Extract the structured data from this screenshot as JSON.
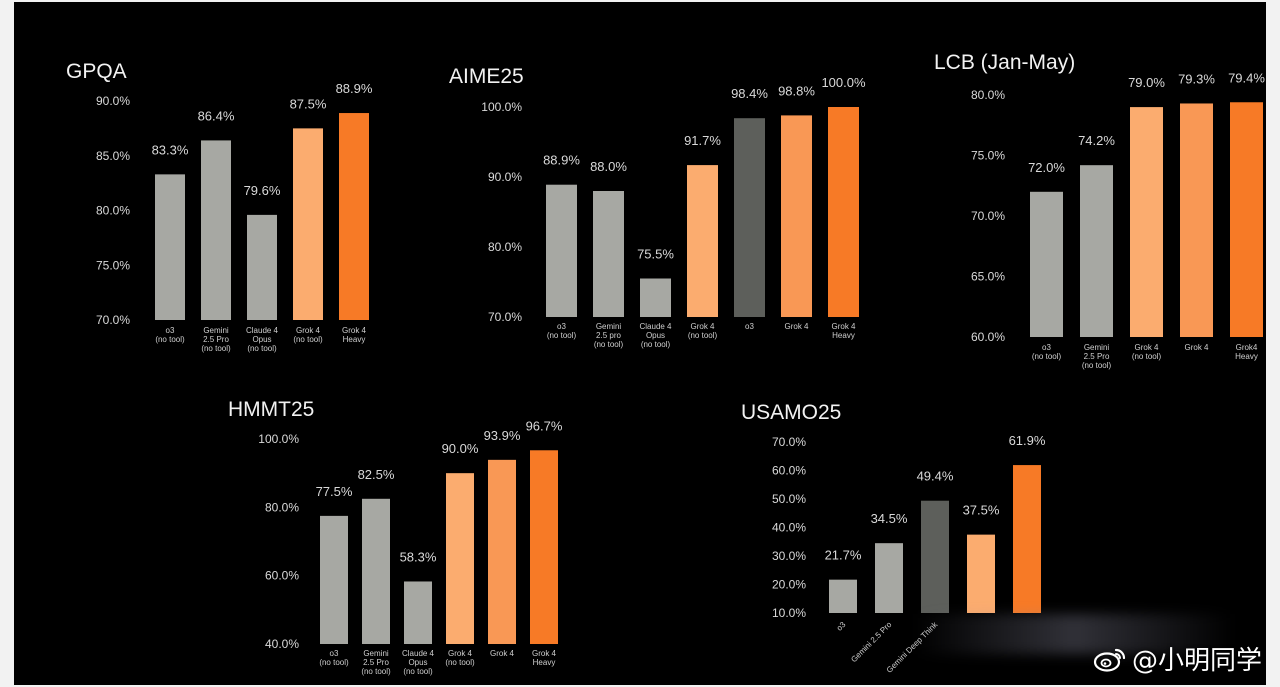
{
  "chart_data": [
    {
      "type": "bar",
      "title": "GPQA",
      "ylim": [
        70,
        90
      ],
      "yticks": [
        "90.0%",
        "85.0%",
        "80.0%",
        "75.0%",
        "70.0%"
      ],
      "grid": false,
      "categories": [
        [
          "o3",
          "(no tool)"
        ],
        [
          "Gemini",
          "2.5 Pro",
          "(no tool)"
        ],
        [
          "Claude 4",
          "Opus",
          "(no tool)"
        ],
        [
          "Grok 4",
          "(no tool)"
        ],
        [
          "Grok 4",
          "Heavy"
        ]
      ],
      "values": [
        83.3,
        86.4,
        79.6,
        87.5,
        88.9
      ],
      "labels": [
        "83.3%",
        "86.4%",
        "79.6%",
        "87.5%",
        "88.9%"
      ],
      "colors": [
        "#a7a8a3",
        "#a7a8a3",
        "#a7a8a3",
        "#fbac6f",
        "#f77a26"
      ]
    },
    {
      "type": "bar",
      "title": "AIME25",
      "ylim": [
        70,
        100
      ],
      "yticks": [
        "100.0%",
        "90.0%",
        "80.0%",
        "70.0%"
      ],
      "grid": false,
      "categories": [
        [
          "o3",
          "(no tool)"
        ],
        [
          "Gemini",
          "2.5 pro",
          "(no tool)"
        ],
        [
          "Claude 4",
          "Opus",
          "(no tool)"
        ],
        [
          "Grok 4",
          "(no tool)"
        ],
        [
          "o3"
        ],
        [
          "Grok 4"
        ],
        [
          "Grok 4",
          "Heavy"
        ]
      ],
      "values": [
        88.9,
        88.0,
        75.5,
        91.7,
        98.4,
        98.8,
        100.0
      ],
      "labels": [
        "88.9%",
        "88.0%",
        "75.5%",
        "91.7%",
        "98.4%",
        "98.8%",
        "100.0%"
      ],
      "colors": [
        "#a7a8a3",
        "#a7a8a3",
        "#a7a8a3",
        "#fbac6f",
        "#5d5f5b",
        "#f99855",
        "#f77a26"
      ]
    },
    {
      "type": "bar",
      "title": "LCB (Jan-May)",
      "ylim": [
        60,
        80
      ],
      "yticks": [
        "80.0%",
        "75.0%",
        "70.0%",
        "65.0%",
        "60.0%"
      ],
      "grid": false,
      "categories": [
        [
          "o3",
          "(no tool)"
        ],
        [
          "Gemini",
          "2.5 Pro",
          "(no tool)"
        ],
        [
          "Grok 4",
          "(no tool)"
        ],
        [
          "Grok 4"
        ],
        [
          "Grok4",
          "Heavy"
        ]
      ],
      "values": [
        72.0,
        74.2,
        79.0,
        79.3,
        79.4
      ],
      "labels": [
        "72.0%",
        "74.2%",
        "79.0%",
        "79.3%",
        "79.4%"
      ],
      "colors": [
        "#a7a8a3",
        "#a7a8a3",
        "#fbac6f",
        "#f99855",
        "#f77a26"
      ]
    },
    {
      "type": "bar",
      "title": "HMMT25",
      "ylim": [
        40,
        100
      ],
      "yticks": [
        "100.0%",
        "80.0%",
        "60.0%",
        "40.0%"
      ],
      "grid": false,
      "categories": [
        [
          "o3",
          "(no tool)"
        ],
        [
          "Gemini",
          "2.5 Pro",
          "(no tool)"
        ],
        [
          "Claude 4",
          "Opus",
          "(no tool)"
        ],
        [
          "Grok 4",
          "(no tool)"
        ],
        [
          "Grok 4"
        ],
        [
          "Grok 4",
          "Heavy"
        ]
      ],
      "values": [
        77.5,
        82.5,
        58.3,
        90.0,
        93.9,
        96.7
      ],
      "labels": [
        "77.5%",
        "82.5%",
        "58.3%",
        "90.0%",
        "93.9%",
        "96.7%"
      ],
      "colors": [
        "#a7a8a3",
        "#a7a8a3",
        "#a7a8a3",
        "#fbac6f",
        "#f99855",
        "#f77a26"
      ]
    },
    {
      "type": "bar",
      "title": "USAMO25",
      "ylim": [
        10,
        70
      ],
      "yticks": [
        "70.0%",
        "60.0%",
        "50.0%",
        "40.0%",
        "30.0%",
        "20.0%",
        "10.0%"
      ],
      "grid": false,
      "categories": [
        [
          "o3"
        ],
        [
          "Gemini 2.5 Pro"
        ],
        [
          "Gemini Deep Think"
        ],
        [
          ""
        ],
        [
          ""
        ]
      ],
      "values": [
        21.7,
        34.5,
        49.4,
        37.5,
        61.9
      ],
      "labels": [
        "21.7%",
        "34.5%",
        "49.4%",
        "37.5%",
        "61.9%"
      ],
      "colors": [
        "#a7a8a3",
        "#a7a8a3",
        "#5d5f5b",
        "#fbac6f",
        "#f77a26"
      ],
      "rotated_categories": true
    }
  ],
  "watermark": {
    "text": "@小明同学",
    "icon": "weibo-logo-icon"
  }
}
